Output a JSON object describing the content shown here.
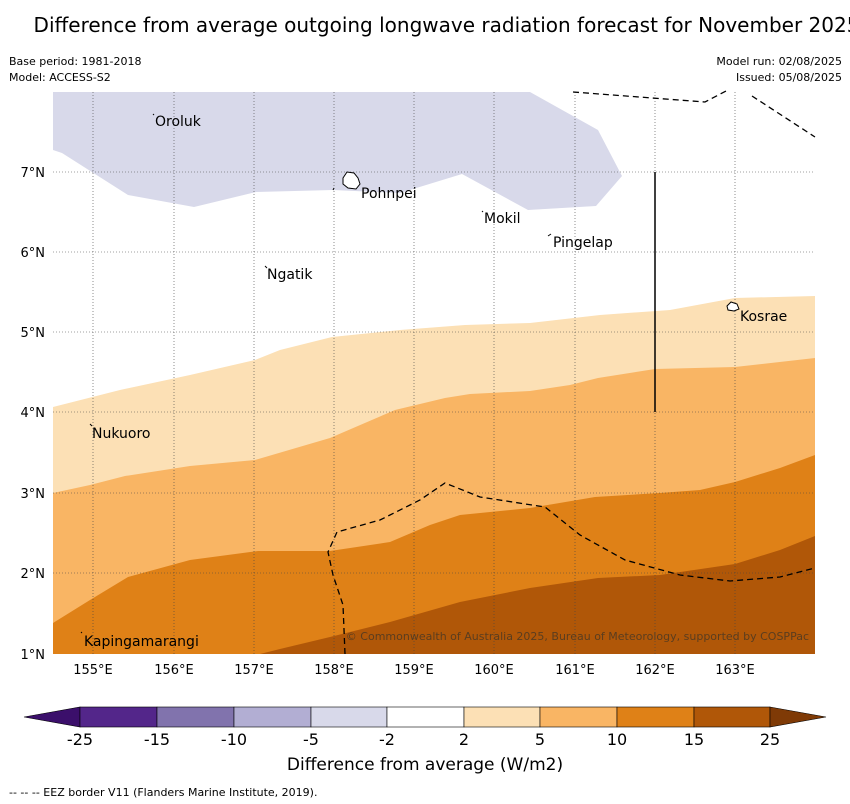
{
  "title": "Difference from average outgoing longwave radiation forecast for November 2025",
  "base_period": "Base period: 1981-2018",
  "model": "Model: ACCESS-S2",
  "model_run": "Model run: 02/08/2025",
  "issued": "Issued: 05/08/2025",
  "copyright": "© Commonwealth of Australia 2025, Bureau of Meteorology, supported by COSPPac",
  "colorbar_label": "Difference from average (W/m2)",
  "footnote": "-- -- -- EEZ border V11 (Flanders Marine Institute, 2019).",
  "map": {
    "lon_range": [
      154.5,
      164.0
    ],
    "lat_range": [
      1.0,
      8.0
    ],
    "lon_ticks": [
      "155°E",
      "156°E",
      "157°E",
      "158°E",
      "159°E",
      "160°E",
      "161°E",
      "162°E",
      "163°E"
    ],
    "lat_ticks": [
      "1°N",
      "2°N",
      "3°N",
      "4°N",
      "5°N",
      "6°N",
      "7°N"
    ],
    "places": [
      "Oroluk",
      "Pohnpei",
      "Mokil",
      "Pingelap",
      "Ngatik",
      "Kosrae",
      "Nukuoro",
      "Kapingamarangi"
    ]
  },
  "colorbar": {
    "ticks": [
      "-25",
      "-15",
      "-10",
      "-5",
      "-2",
      "2",
      "5",
      "10",
      "15",
      "25"
    ],
    "colors": [
      "#3b0f6b",
      "#53268a",
      "#8173ad",
      "#b2aed3",
      "#d8d9ea",
      "#ffffff",
      "#fce0b5",
      "#f9b564",
      "#df8117",
      "#b05708",
      "#7f3a06"
    ]
  },
  "legend_colors": {
    "minus5_to_minus2": "#d8d9ea",
    "2_to_5": "#fce0b5",
    "5_to_10": "#f9b564",
    "10_to_15": "#df8117",
    "15_to_25": "#b05708"
  }
}
